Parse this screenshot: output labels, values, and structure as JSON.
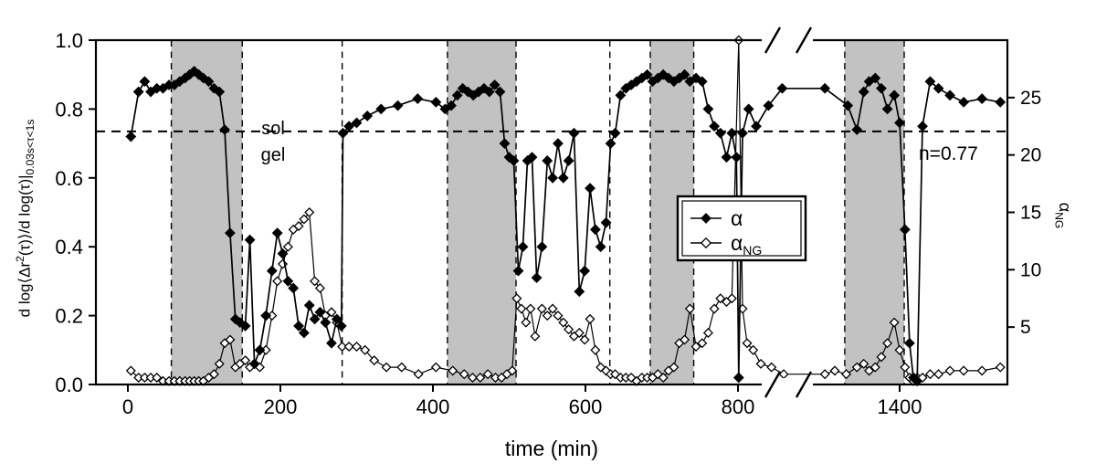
{
  "colors": {
    "band": "#c2c2c2",
    "line": "#000000",
    "background": "#ffffff"
  },
  "labels": {
    "xlabel": "time (min)",
    "ylabel_left": {
      "p1": "d log⟨Δr",
      "sup": "2",
      "p2": "(τ)⟩/d log(τ)|",
      "sub": "0.03s<τ<1s"
    },
    "ylabel_right": {
      "p1": "α",
      "sub": "NG"
    }
  },
  "legend": [
    {
      "label": "α",
      "sub": "",
      "marker": "filled-diamond"
    },
    {
      "label": "α",
      "sub": "NG",
      "marker": "open-diamond"
    }
  ],
  "chart_data": {
    "type": "line",
    "title": "",
    "xlabel": "time (min)",
    "x_ticks": [
      0,
      200,
      400,
      600,
      800,
      1400
    ],
    "x_axis_break": {
      "hidden_range": [
        880,
        1280
      ]
    },
    "left_axis": {
      "label": "d log⟨Δr2(τ)⟩/d log(τ)|0.03s<τ<1s",
      "range": [
        0,
        1.0
      ],
      "ticks": [
        0.0,
        0.2,
        0.4,
        0.6,
        0.8,
        1.0
      ]
    },
    "right_axis": {
      "label": "αNG",
      "range": [
        0,
        30
      ],
      "ticks": [
        5,
        10,
        15,
        20,
        25
      ]
    },
    "gel_line": 0.735,
    "annotations": {
      "sol_label": "sol",
      "gel_label": "gel",
      "fit_label": "n=0.77"
    },
    "shaded_bands": [
      [
        57,
        150
      ],
      [
        419,
        509
      ],
      [
        685,
        742
      ],
      [
        1328,
        1406
      ]
    ],
    "dashed_vlines": [
      57,
      150,
      281,
      419,
      509,
      632,
      685,
      742,
      1328,
      1406
    ],
    "series": [
      {
        "name": "alpha",
        "axis": "left",
        "marker": "filled-diamond",
        "points": [
          [
            4,
            0.72
          ],
          [
            14,
            0.85
          ],
          [
            22,
            0.88
          ],
          [
            30,
            0.85
          ],
          [
            38,
            0.86
          ],
          [
            46,
            0.86
          ],
          [
            54,
            0.87
          ],
          [
            61,
            0.87
          ],
          [
            68,
            0.88
          ],
          [
            75,
            0.89
          ],
          [
            81,
            0.9
          ],
          [
            87,
            0.91
          ],
          [
            93,
            0.9
          ],
          [
            99,
            0.89
          ],
          [
            106,
            0.88
          ],
          [
            113,
            0.86
          ],
          [
            120,
            0.85
          ],
          [
            127,
            0.74
          ],
          [
            134,
            0.44
          ],
          [
            141,
            0.19
          ],
          [
            147,
            0.18
          ],
          [
            154,
            0.17
          ],
          [
            160,
            0.42
          ],
          [
            166,
            0.06
          ],
          [
            173,
            0.1
          ],
          [
            181,
            0.2
          ],
          [
            189,
            0.33
          ],
          [
            196,
            0.44
          ],
          [
            203,
            0.38
          ],
          [
            210,
            0.3
          ],
          [
            217,
            0.28
          ],
          [
            224,
            0.17
          ],
          [
            231,
            0.15
          ],
          [
            238,
            0.23
          ],
          [
            245,
            0.19
          ],
          [
            252,
            0.21
          ],
          [
            259,
            0.18
          ],
          [
            267,
            0.12
          ],
          [
            274,
            0.19
          ],
          [
            280,
            0.17
          ],
          [
            282,
            0.73
          ],
          [
            290,
            0.75
          ],
          [
            300,
            0.76
          ],
          [
            314,
            0.78
          ],
          [
            332,
            0.8
          ],
          [
            354,
            0.81
          ],
          [
            380,
            0.83
          ],
          [
            404,
            0.82
          ],
          [
            416,
            0.8
          ],
          [
            424,
            0.81
          ],
          [
            432,
            0.84
          ],
          [
            439,
            0.86
          ],
          [
            446,
            0.85
          ],
          [
            453,
            0.84
          ],
          [
            460,
            0.85
          ],
          [
            467,
            0.86
          ],
          [
            474,
            0.85
          ],
          [
            481,
            0.87
          ],
          [
            488,
            0.85
          ],
          [
            494,
            0.7
          ],
          [
            500,
            0.66
          ],
          [
            506,
            0.65
          ],
          [
            512,
            0.33
          ],
          [
            518,
            0.4
          ],
          [
            524,
            0.65
          ],
          [
            530,
            0.66
          ],
          [
            536,
            0.31
          ],
          [
            543,
            0.4
          ],
          [
            550,
            0.65
          ],
          [
            557,
            0.6
          ],
          [
            564,
            0.7
          ],
          [
            571,
            0.6
          ],
          [
            578,
            0.65
          ],
          [
            585,
            0.73
          ],
          [
            592,
            0.27
          ],
          [
            599,
            0.33
          ],
          [
            606,
            0.57
          ],
          [
            613,
            0.45
          ],
          [
            620,
            0.4
          ],
          [
            627,
            0.47
          ],
          [
            633,
            0.7
          ],
          [
            639,
            0.73
          ],
          [
            646,
            0.84
          ],
          [
            653,
            0.86
          ],
          [
            660,
            0.87
          ],
          [
            667,
            0.88
          ],
          [
            674,
            0.89
          ],
          [
            681,
            0.9
          ],
          [
            688,
            0.88
          ],
          [
            695,
            0.89
          ],
          [
            702,
            0.9
          ],
          [
            709,
            0.89
          ],
          [
            716,
            0.88
          ],
          [
            723,
            0.89
          ],
          [
            730,
            0.9
          ],
          [
            737,
            0.88
          ],
          [
            745,
            0.89
          ],
          [
            753,
            0.88
          ],
          [
            761,
            0.8
          ],
          [
            769,
            0.75
          ],
          [
            777,
            0.73
          ],
          [
            785,
            0.66
          ],
          [
            792,
            0.73
          ],
          [
            798,
            0.66
          ],
          [
            801,
            0.02
          ],
          [
            806,
            0.73
          ],
          [
            814,
            0.8
          ],
          [
            824,
            0.75
          ],
          [
            840,
            0.81
          ],
          [
            858,
            0.86
          ],
          [
            1302,
            0.86
          ],
          [
            1332,
            0.81
          ],
          [
            1344,
            0.74
          ],
          [
            1353,
            0.85
          ],
          [
            1360,
            0.88
          ],
          [
            1368,
            0.89
          ],
          [
            1376,
            0.86
          ],
          [
            1384,
            0.8
          ],
          [
            1393,
            0.84
          ],
          [
            1400,
            0.76
          ],
          [
            1407,
            0.45
          ],
          [
            1413,
            0.12
          ],
          [
            1418,
            0.02
          ],
          [
            1423,
            0.01
          ],
          [
            1430,
            0.75
          ],
          [
            1440,
            0.88
          ],
          [
            1451,
            0.86
          ],
          [
            1466,
            0.84
          ],
          [
            1484,
            0.82
          ],
          [
            1508,
            0.83
          ],
          [
            1532,
            0.82
          ]
        ]
      },
      {
        "name": "alpha_NG",
        "axis": "right",
        "marker": "open-diamond",
        "points": [
          [
            4,
            1.2
          ],
          [
            14,
            0.6
          ],
          [
            22,
            0.6
          ],
          [
            30,
            0.6
          ],
          [
            38,
            0.6
          ],
          [
            46,
            0.3
          ],
          [
            54,
            0.3
          ],
          [
            61,
            0.3
          ],
          [
            68,
            0.3
          ],
          [
            75,
            0.3
          ],
          [
            81,
            0.3
          ],
          [
            87,
            0.3
          ],
          [
            93,
            0.3
          ],
          [
            99,
            0.3
          ],
          [
            106,
            0.6
          ],
          [
            113,
            0.9
          ],
          [
            120,
            1.8
          ],
          [
            127,
            3.6
          ],
          [
            134,
            3.9
          ],
          [
            141,
            1.5
          ],
          [
            147,
            1.8
          ],
          [
            154,
            2.1
          ],
          [
            160,
            1.5
          ],
          [
            166,
            1.8
          ],
          [
            173,
            1.5
          ],
          [
            181,
            3.0
          ],
          [
            189,
            6.0
          ],
          [
            196,
            9.0
          ],
          [
            203,
            10.5
          ],
          [
            210,
            12.0
          ],
          [
            217,
            13.5
          ],
          [
            224,
            13.8
          ],
          [
            231,
            14.4
          ],
          [
            238,
            15.0
          ],
          [
            245,
            9.0
          ],
          [
            252,
            8.4
          ],
          [
            259,
            6.0
          ],
          [
            267,
            6.3
          ],
          [
            274,
            5.4
          ],
          [
            281,
            3.3
          ],
          [
            290,
            3.3
          ],
          [
            300,
            3.3
          ],
          [
            311,
            3.0
          ],
          [
            323,
            2.1
          ],
          [
            339,
            1.5
          ],
          [
            359,
            1.5
          ],
          [
            381,
            0.9
          ],
          [
            404,
            1.5
          ],
          [
            426,
            1.2
          ],
          [
            441,
            0.9
          ],
          [
            452,
            0.6
          ],
          [
            462,
            0.6
          ],
          [
            472,
            0.9
          ],
          [
            482,
            0.6
          ],
          [
            490,
            0.6
          ],
          [
            497,
            0.9
          ],
          [
            504,
            1.2
          ],
          [
            510,
            7.5
          ],
          [
            516,
            6.6
          ],
          [
            522,
            5.4
          ],
          [
            528,
            6.6
          ],
          [
            534,
            4.2
          ],
          [
            543,
            6.6
          ],
          [
            550,
            6.0
          ],
          [
            557,
            6.6
          ],
          [
            564,
            6.0
          ],
          [
            571,
            5.4
          ],
          [
            578,
            4.8
          ],
          [
            585,
            4.2
          ],
          [
            592,
            4.5
          ],
          [
            599,
            3.9
          ],
          [
            606,
            5.7
          ],
          [
            613,
            3.0
          ],
          [
            620,
            1.5
          ],
          [
            627,
            1.2
          ],
          [
            633,
            0.9
          ],
          [
            639,
            0.9
          ],
          [
            646,
            0.6
          ],
          [
            653,
            0.6
          ],
          [
            660,
            0.6
          ],
          [
            667,
            0.3
          ],
          [
            674,
            0.6
          ],
          [
            681,
            0.6
          ],
          [
            688,
            0.6
          ],
          [
            695,
            0.9
          ],
          [
            702,
            0.6
          ],
          [
            709,
            1.2
          ],
          [
            716,
            1.5
          ],
          [
            723,
            3.6
          ],
          [
            730,
            3.9
          ],
          [
            737,
            6.6
          ],
          [
            745,
            3.3
          ],
          [
            753,
            3.6
          ],
          [
            761,
            4.5
          ],
          [
            769,
            6.6
          ],
          [
            777,
            7.5
          ],
          [
            785,
            7.2
          ],
          [
            792,
            7.5
          ],
          [
            801,
            30
          ],
          [
            806,
            6.6
          ],
          [
            812,
            3.6
          ],
          [
            820,
            3.0
          ],
          [
            830,
            1.8
          ],
          [
            844,
            1.5
          ],
          [
            860,
            0.9
          ],
          [
            1302,
            0.9
          ],
          [
            1315,
            1.2
          ],
          [
            1330,
            0.9
          ],
          [
            1344,
            1.5
          ],
          [
            1353,
            1.8
          ],
          [
            1360,
            1.2
          ],
          [
            1368,
            1.5
          ],
          [
            1376,
            2.4
          ],
          [
            1384,
            3.6
          ],
          [
            1393,
            5.4
          ],
          [
            1400,
            3.0
          ],
          [
            1407,
            1.5
          ],
          [
            1413,
            0.6
          ],
          [
            1418,
            0.3
          ],
          [
            1423,
            0.6
          ],
          [
            1430,
            0.6
          ],
          [
            1440,
            0.9
          ],
          [
            1451,
            0.9
          ],
          [
            1466,
            1.2
          ],
          [
            1484,
            1.2
          ],
          [
            1508,
            1.2
          ],
          [
            1532,
            1.5
          ]
        ]
      }
    ]
  }
}
